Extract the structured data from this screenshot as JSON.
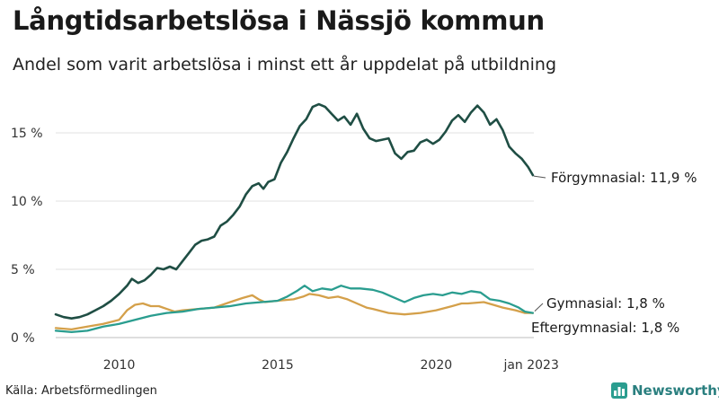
{
  "header": {
    "title": "Långtidsarbetslösa i Nässjö kommun",
    "subtitle": "Andel som varit arbetslösa i minst ett år uppdelat på utbildning"
  },
  "footer": {
    "source": "Källa: Arbetsförmedlingen",
    "brand": "Newsworthy"
  },
  "colors": {
    "forgymnasial": "#1f4e44",
    "gymnasial": "#d4a04a",
    "eftergymnasial": "#2a9d8f"
  },
  "chart_data": {
    "type": "line",
    "xlim": [
      2008.0,
      2023.08
    ],
    "ylim": [
      0,
      17.5
    ],
    "y_ticks": [
      0,
      5,
      10,
      15
    ],
    "y_tick_labels": [
      "0 %",
      "5 %",
      "10 %",
      "15 %"
    ],
    "x_ticks": [
      2010,
      2015,
      2020,
      2023.0
    ],
    "x_tick_labels": [
      "2010",
      "2015",
      "2020",
      "jan 2023"
    ],
    "grid": "horizontal",
    "series": [
      {
        "key": "forgymnasial",
        "name": "Förgymnasial",
        "end_label": "Förgymnasial: 11,9 %",
        "points": [
          [
            2008.0,
            1.7
          ],
          [
            2008.25,
            1.5
          ],
          [
            2008.5,
            1.4
          ],
          [
            2008.75,
            1.5
          ],
          [
            2009.0,
            1.7
          ],
          [
            2009.25,
            2.0
          ],
          [
            2009.5,
            2.3
          ],
          [
            2009.75,
            2.7
          ],
          [
            2010.0,
            3.2
          ],
          [
            2010.25,
            3.8
          ],
          [
            2010.4,
            4.3
          ],
          [
            2010.6,
            4.0
          ],
          [
            2010.8,
            4.2
          ],
          [
            2011.0,
            4.6
          ],
          [
            2011.2,
            5.1
          ],
          [
            2011.4,
            5.0
          ],
          [
            2011.6,
            5.2
          ],
          [
            2011.8,
            5.0
          ],
          [
            2012.0,
            5.6
          ],
          [
            2012.2,
            6.2
          ],
          [
            2012.4,
            6.8
          ],
          [
            2012.6,
            7.1
          ],
          [
            2012.8,
            7.2
          ],
          [
            2013.0,
            7.4
          ],
          [
            2013.2,
            8.2
          ],
          [
            2013.4,
            8.5
          ],
          [
            2013.6,
            9.0
          ],
          [
            2013.8,
            9.6
          ],
          [
            2014.0,
            10.5
          ],
          [
            2014.2,
            11.1
          ],
          [
            2014.4,
            11.3
          ],
          [
            2014.55,
            10.9
          ],
          [
            2014.7,
            11.4
          ],
          [
            2014.9,
            11.6
          ],
          [
            2015.1,
            12.8
          ],
          [
            2015.3,
            13.6
          ],
          [
            2015.5,
            14.6
          ],
          [
            2015.7,
            15.5
          ],
          [
            2015.9,
            16.0
          ],
          [
            2016.1,
            16.9
          ],
          [
            2016.3,
            17.1
          ],
          [
            2016.5,
            16.9
          ],
          [
            2016.7,
            16.4
          ],
          [
            2016.9,
            15.9
          ],
          [
            2017.1,
            16.2
          ],
          [
            2017.3,
            15.6
          ],
          [
            2017.5,
            16.4
          ],
          [
            2017.7,
            15.3
          ],
          [
            2017.9,
            14.6
          ],
          [
            2018.1,
            14.4
          ],
          [
            2018.3,
            14.5
          ],
          [
            2018.5,
            14.6
          ],
          [
            2018.7,
            13.5
          ],
          [
            2018.9,
            13.1
          ],
          [
            2019.1,
            13.6
          ],
          [
            2019.3,
            13.7
          ],
          [
            2019.5,
            14.3
          ],
          [
            2019.7,
            14.5
          ],
          [
            2019.9,
            14.2
          ],
          [
            2020.1,
            14.5
          ],
          [
            2020.3,
            15.1
          ],
          [
            2020.5,
            15.9
          ],
          [
            2020.7,
            16.3
          ],
          [
            2020.9,
            15.8
          ],
          [
            2021.1,
            16.5
          ],
          [
            2021.3,
            17.0
          ],
          [
            2021.5,
            16.5
          ],
          [
            2021.7,
            15.6
          ],
          [
            2021.9,
            16.0
          ],
          [
            2022.1,
            15.2
          ],
          [
            2022.3,
            14.0
          ],
          [
            2022.5,
            13.5
          ],
          [
            2022.7,
            13.1
          ],
          [
            2022.9,
            12.5
          ],
          [
            2023.05,
            11.9
          ]
        ]
      },
      {
        "key": "gymnasial",
        "name": "Gymnasial",
        "end_label": "Gymnasial:  1,8 %",
        "points": [
          [
            2008.0,
            0.7
          ],
          [
            2008.5,
            0.6
          ],
          [
            2009.0,
            0.8
          ],
          [
            2009.5,
            1.0
          ],
          [
            2010.0,
            1.3
          ],
          [
            2010.25,
            2.0
          ],
          [
            2010.5,
            2.4
          ],
          [
            2010.75,
            2.5
          ],
          [
            2011.0,
            2.3
          ],
          [
            2011.25,
            2.3
          ],
          [
            2011.5,
            2.1
          ],
          [
            2011.75,
            1.9
          ],
          [
            2012.0,
            2.0
          ],
          [
            2012.5,
            2.1
          ],
          [
            2013.0,
            2.2
          ],
          [
            2013.5,
            2.6
          ],
          [
            2013.9,
            2.9
          ],
          [
            2014.2,
            3.1
          ],
          [
            2014.4,
            2.8
          ],
          [
            2014.6,
            2.6
          ],
          [
            2015.0,
            2.7
          ],
          [
            2015.5,
            2.8
          ],
          [
            2015.8,
            3.0
          ],
          [
            2016.0,
            3.2
          ],
          [
            2016.3,
            3.1
          ],
          [
            2016.6,
            2.9
          ],
          [
            2016.9,
            3.0
          ],
          [
            2017.2,
            2.8
          ],
          [
            2017.5,
            2.5
          ],
          [
            2017.8,
            2.2
          ],
          [
            2018.0,
            2.1
          ],
          [
            2018.5,
            1.8
          ],
          [
            2019.0,
            1.7
          ],
          [
            2019.5,
            1.8
          ],
          [
            2020.0,
            2.0
          ],
          [
            2020.5,
            2.3
          ],
          [
            2020.8,
            2.5
          ],
          [
            2021.0,
            2.5
          ],
          [
            2021.5,
            2.6
          ],
          [
            2021.8,
            2.4
          ],
          [
            2022.1,
            2.2
          ],
          [
            2022.5,
            2.0
          ],
          [
            2022.8,
            1.8
          ],
          [
            2023.05,
            1.8
          ]
        ]
      },
      {
        "key": "eftergymnasial",
        "name": "Eftergymnasial",
        "end_label": "Eftergymnasial:  1,8 %",
        "points": [
          [
            2008.0,
            0.5
          ],
          [
            2008.5,
            0.4
          ],
          [
            2009.0,
            0.5
          ],
          [
            2009.5,
            0.8
          ],
          [
            2010.0,
            1.0
          ],
          [
            2010.5,
            1.3
          ],
          [
            2011.0,
            1.6
          ],
          [
            2011.5,
            1.8
          ],
          [
            2012.0,
            1.9
          ],
          [
            2012.5,
            2.1
          ],
          [
            2013.0,
            2.2
          ],
          [
            2013.5,
            2.3
          ],
          [
            2014.0,
            2.5
          ],
          [
            2014.5,
            2.6
          ],
          [
            2015.0,
            2.7
          ],
          [
            2015.3,
            3.0
          ],
          [
            2015.6,
            3.4
          ],
          [
            2015.85,
            3.8
          ],
          [
            2016.1,
            3.4
          ],
          [
            2016.4,
            3.6
          ],
          [
            2016.7,
            3.5
          ],
          [
            2017.0,
            3.8
          ],
          [
            2017.3,
            3.6
          ],
          [
            2017.6,
            3.6
          ],
          [
            2018.0,
            3.5
          ],
          [
            2018.3,
            3.3
          ],
          [
            2018.6,
            3.0
          ],
          [
            2019.0,
            2.6
          ],
          [
            2019.3,
            2.9
          ],
          [
            2019.6,
            3.1
          ],
          [
            2019.9,
            3.2
          ],
          [
            2020.2,
            3.1
          ],
          [
            2020.5,
            3.3
          ],
          [
            2020.8,
            3.2
          ],
          [
            2021.1,
            3.4
          ],
          [
            2021.4,
            3.3
          ],
          [
            2021.7,
            2.8
          ],
          [
            2022.0,
            2.7
          ],
          [
            2022.3,
            2.5
          ],
          [
            2022.6,
            2.2
          ],
          [
            2022.8,
            1.9
          ],
          [
            2023.05,
            1.8
          ]
        ]
      }
    ]
  }
}
